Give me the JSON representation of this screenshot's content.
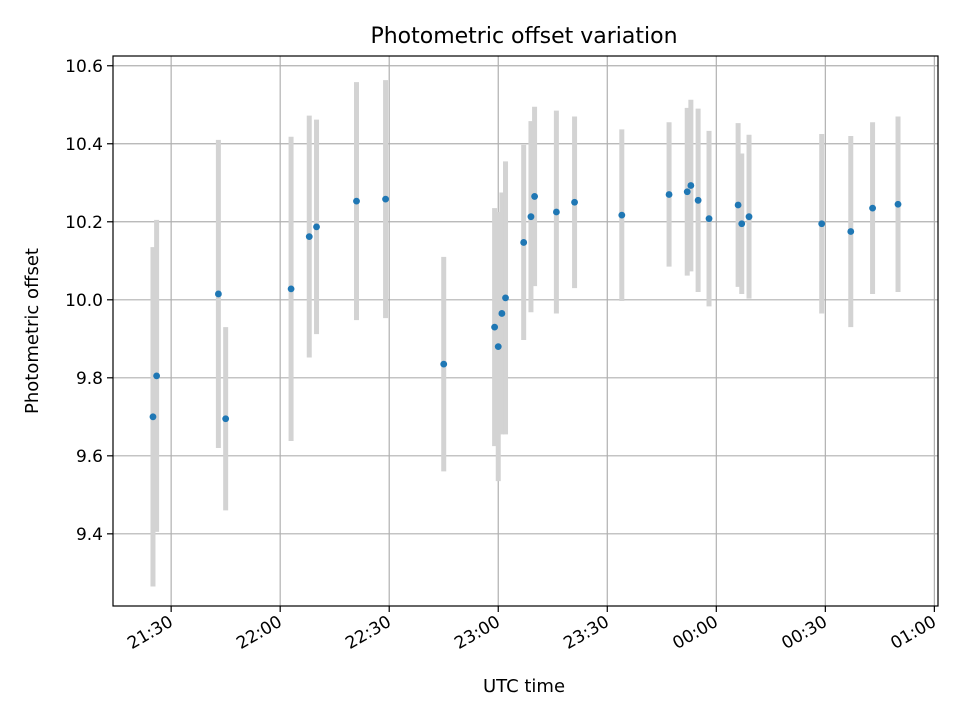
{
  "chart_data": {
    "type": "scatter",
    "title": "Photometric offset variation",
    "xlabel": "UTC time",
    "ylabel": "Photometric offset",
    "x_unit": "UTC time (HH:MM)",
    "xlim": [
      "21:14",
      "01:01"
    ],
    "ylim": [
      9.215,
      10.625
    ],
    "grid": true,
    "x_ticks": [
      "21:30",
      "22:00",
      "22:30",
      "23:00",
      "23:30",
      "00:00",
      "00:30",
      "01:00"
    ],
    "y_ticks": [
      "9.4",
      "9.6",
      "9.8",
      "10.0",
      "10.2",
      "10.4",
      "10.6"
    ],
    "point_color": "#1f77b4",
    "errorbar_color": "#d3d3d3",
    "points": [
      {
        "x": "21:25",
        "y": 9.7,
        "yerr": 0.435
      },
      {
        "x": "21:26",
        "y": 9.805,
        "yerr": 0.4
      },
      {
        "x": "21:43",
        "y": 10.015,
        "yerr": 0.395
      },
      {
        "x": "21:45",
        "y": 9.695,
        "yerr": 0.235
      },
      {
        "x": "22:03",
        "y": 10.028,
        "yerr": 0.39
      },
      {
        "x": "22:08",
        "y": 10.162,
        "yerr": 0.31
      },
      {
        "x": "22:10",
        "y": 10.187,
        "yerr": 0.275
      },
      {
        "x": "22:21",
        "y": 10.253,
        "yerr": 0.305
      },
      {
        "x": "22:29",
        "y": 10.258,
        "yerr": 0.305
      },
      {
        "x": "22:45",
        "y": 9.835,
        "yerr": 0.275
      },
      {
        "x": "22:59",
        "y": 9.93,
        "yerr": 0.305
      },
      {
        "x": "23:00",
        "y": 9.88,
        "yerr": 0.345
      },
      {
        "x": "23:01",
        "y": 9.965,
        "yerr": 0.31
      },
      {
        "x": "23:02",
        "y": 10.005,
        "yerr": 0.35
      },
      {
        "x": "23:07",
        "y": 10.147,
        "yerr": 0.25
      },
      {
        "x": "23:09",
        "y": 10.213,
        "yerr": 0.245
      },
      {
        "x": "23:10",
        "y": 10.265,
        "yerr": 0.23
      },
      {
        "x": "23:16",
        "y": 10.225,
        "yerr": 0.26
      },
      {
        "x": "23:21",
        "y": 10.25,
        "yerr": 0.22
      },
      {
        "x": "23:34",
        "y": 10.217,
        "yerr": 0.22
      },
      {
        "x": "23:47",
        "y": 10.27,
        "yerr": 0.185
      },
      {
        "x": "23:52",
        "y": 10.277,
        "yerr": 0.215
      },
      {
        "x": "23:53",
        "y": 10.293,
        "yerr": 0.22
      },
      {
        "x": "23:55",
        "y": 10.255,
        "yerr": 0.235
      },
      {
        "x": "23:58",
        "y": 10.208,
        "yerr": 0.225
      },
      {
        "x": "00:06",
        "y": 10.243,
        "yerr": 0.21
      },
      {
        "x": "00:07",
        "y": 10.195,
        "yerr": 0.18
      },
      {
        "x": "00:09",
        "y": 10.213,
        "yerr": 0.21
      },
      {
        "x": "00:29",
        "y": 10.195,
        "yerr": 0.23
      },
      {
        "x": "00:37",
        "y": 10.175,
        "yerr": 0.245
      },
      {
        "x": "00:43",
        "y": 10.235,
        "yerr": 0.22
      },
      {
        "x": "00:50",
        "y": 10.245,
        "yerr": 0.225
      }
    ]
  }
}
